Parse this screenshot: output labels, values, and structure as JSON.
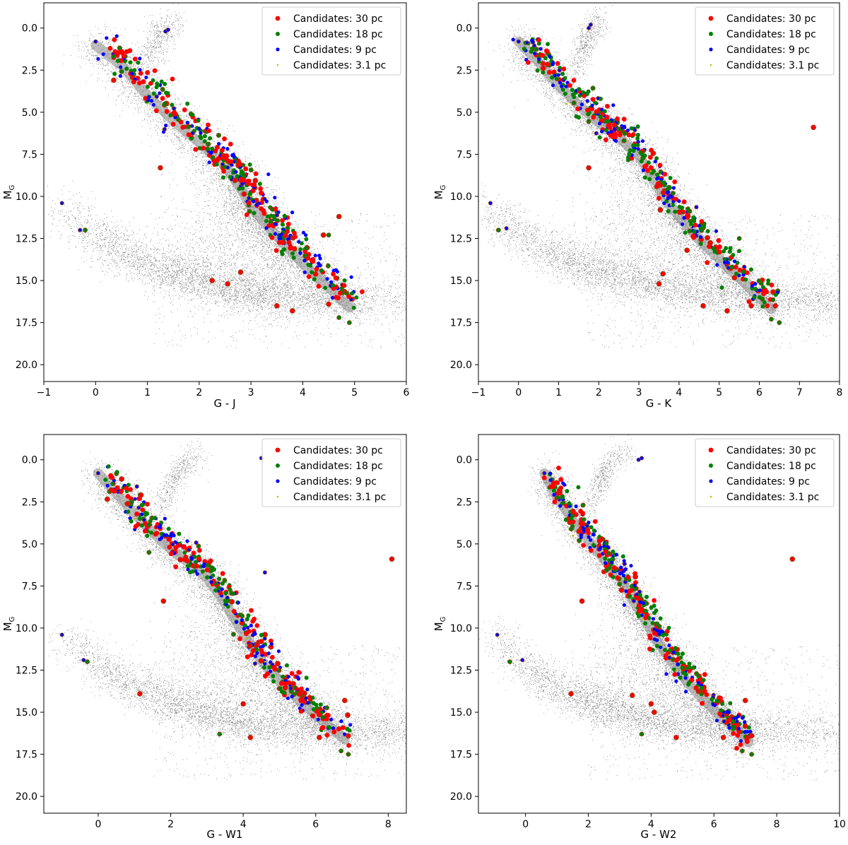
{
  "figure": {
    "background": "#ffffff",
    "background_dot_color": "#808080"
  },
  "legend": [
    {
      "label": "Candidates: 30 pc",
      "color": "#ff0000",
      "marker": "large"
    },
    {
      "label": "Candidates: 18 pc",
      "color": "#008000",
      "marker": "medium"
    },
    {
      "label": "Candidates: 9 pc",
      "color": "#0000ff",
      "marker": "small"
    },
    {
      "label": "Candidates: 3.1 pc",
      "color": "#bfbf00",
      "marker": "tiny"
    }
  ],
  "chart_data": [
    {
      "type": "scatter",
      "title": "",
      "xlabel": "G - J",
      "ylabel": "M_G",
      "xlim": [
        -1,
        6
      ],
      "ylim": [
        21,
        -1.5
      ],
      "xticks": [
        -1,
        0,
        1,
        2,
        3,
        4,
        5,
        6
      ],
      "yticks": [
        0.0,
        2.5,
        5.0,
        7.5,
        10.0,
        12.5,
        15.0,
        17.5,
        20.0
      ],
      "ytick_labels": [
        "0.0",
        "2.5",
        "5.0",
        "7.5",
        "10.0",
        "12.5",
        "15.0",
        "17.5",
        "20.0"
      ],
      "legend_position": "top-right",
      "main_sequence": [
        [
          0.0,
          1.0
        ],
        [
          0.5,
          2.2
        ],
        [
          1.0,
          4.0
        ],
        [
          1.5,
          5.5
        ],
        [
          2.0,
          6.8
        ],
        [
          2.5,
          8.2
        ],
        [
          2.8,
          9.5
        ],
        [
          3.0,
          10.6
        ],
        [
          3.3,
          11.7
        ],
        [
          3.6,
          12.7
        ],
        [
          4.0,
          14.0
        ],
        [
          4.5,
          15.4
        ],
        [
          4.9,
          16.6
        ]
      ],
      "white_dwarf_sequence": [
        [
          -0.6,
          10.5
        ],
        [
          0.0,
          12.3
        ],
        [
          0.5,
          13.3
        ],
        [
          1.0,
          14.0
        ],
        [
          1.5,
          14.6
        ],
        [
          2.0,
          15.0
        ],
        [
          2.5,
          15.5
        ],
        [
          3.0,
          15.8
        ],
        [
          3.5,
          16.0
        ],
        [
          4.5,
          16.1
        ],
        [
          6.0,
          16.2
        ]
      ],
      "giant_branch": [
        [
          0.9,
          2.8
        ],
        [
          1.1,
          1.5
        ],
        [
          1.2,
          0.6
        ],
        [
          1.3,
          0.0
        ],
        [
          1.6,
          -0.5
        ]
      ],
      "series": [
        {
          "name": "Candidates: 30 pc",
          "points": [
            [
              0.35,
              3.1
            ],
            [
              1.25,
              8.3
            ],
            [
              2.25,
              15.0
            ],
            [
              2.55,
              15.2
            ],
            [
              2.8,
              14.5
            ],
            [
              3.5,
              16.5
            ],
            [
              3.8,
              16.8
            ],
            [
              4.5,
              16.4
            ],
            [
              4.7,
              11.2
            ],
            [
              4.4,
              12.3
            ]
          ]
        },
        {
          "name": "Candidates: 18 pc",
          "points": [
            [
              -0.2,
              12.0
            ],
            [
              0.35,
              1.7
            ],
            [
              4.5,
              12.3
            ],
            [
              4.9,
              17.5
            ],
            [
              4.7,
              17.2
            ]
          ]
        },
        {
          "name": "Candidates: 9 pc",
          "points": [
            [
              -0.65,
              10.4
            ],
            [
              -0.3,
              12.0
            ],
            [
              0.0,
              0.8
            ],
            [
              1.35,
              0.2
            ],
            [
              1.4,
              0.1
            ]
          ]
        },
        {
          "name": "Candidates: 3.1 pc",
          "points": [
            [
              1.0,
              4.5
            ],
            [
              2.5,
              8.0
            ],
            [
              3.0,
              10.0
            ],
            [
              3.4,
              11.3
            ]
          ]
        }
      ]
    },
    {
      "type": "scatter",
      "title": "",
      "xlabel": "G - K",
      "ylabel": "M_G",
      "xlim": [
        -1,
        8
      ],
      "ylim": [
        21,
        -1.5
      ],
      "xticks": [
        -1,
        0,
        1,
        2,
        3,
        4,
        5,
        6,
        7,
        8
      ],
      "yticks": [
        0.0,
        2.5,
        5.0,
        7.5,
        10.0,
        12.5,
        15.0,
        17.5,
        20.0
      ],
      "ytick_labels": [
        "0.0",
        "2.5",
        "5.0",
        "7.5",
        "10.0",
        "12.5",
        "15.0",
        "17.5",
        "20.0"
      ],
      "legend_position": "top-right",
      "main_sequence": [
        [
          0.0,
          0.8
        ],
        [
          0.5,
          2.0
        ],
        [
          1.0,
          3.4
        ],
        [
          1.5,
          4.6
        ],
        [
          2.0,
          5.6
        ],
        [
          2.5,
          6.5
        ],
        [
          3.0,
          7.6
        ],
        [
          3.4,
          9.0
        ],
        [
          3.7,
          10.3
        ],
        [
          4.1,
          11.5
        ],
        [
          4.6,
          12.8
        ],
        [
          5.2,
          14.2
        ],
        [
          5.8,
          15.5
        ],
        [
          6.3,
          16.7
        ]
      ],
      "white_dwarf_sequence": [
        [
          -0.8,
          10.5
        ],
        [
          0.0,
          12.2
        ],
        [
          0.7,
          13.2
        ],
        [
          1.3,
          13.9
        ],
        [
          2.0,
          14.5
        ],
        [
          2.7,
          15.0
        ],
        [
          3.5,
          15.4
        ],
        [
          4.5,
          15.8
        ],
        [
          5.5,
          16.0
        ],
        [
          7.0,
          16.1
        ],
        [
          8.0,
          16.1
        ]
      ],
      "giant_branch": [
        [
          1.4,
          2.5
        ],
        [
          1.6,
          1.3
        ],
        [
          1.7,
          0.6
        ],
        [
          1.8,
          0.0
        ],
        [
          2.1,
          -0.5
        ]
      ],
      "series": [
        {
          "name": "Candidates: 30 pc",
          "points": [
            [
              1.75,
              8.3
            ],
            [
              3.5,
              15.2
            ],
            [
              3.6,
              14.6
            ],
            [
              4.6,
              16.5
            ],
            [
              5.2,
              16.8
            ],
            [
              7.35,
              5.9
            ],
            [
              6.4,
              16.5
            ],
            [
              5.8,
              16.5
            ],
            [
              4.2,
              13.2
            ]
          ]
        },
        {
          "name": "Candidates: 18 pc",
          "points": [
            [
              -0.5,
              12.0
            ],
            [
              2.5,
              6.0
            ],
            [
              5.5,
              12.5
            ],
            [
              6.5,
              17.5
            ],
            [
              6.3,
              17.3
            ]
          ]
        },
        {
          "name": "Candidates: 9 pc",
          "points": [
            [
              -0.7,
              10.4
            ],
            [
              -0.3,
              11.9
            ],
            [
              0.0,
              0.8
            ],
            [
              1.75,
              0.0
            ],
            [
              1.8,
              -0.2
            ]
          ]
        },
        {
          "name": "Candidates: 3.1 pc",
          "points": [
            [
              1.2,
              4.5
            ],
            [
              3.3,
              8.5
            ],
            [
              3.8,
              10.5
            ],
            [
              4.3,
              11.8
            ]
          ]
        }
      ]
    },
    {
      "type": "scatter",
      "title": "",
      "xlabel": "G - W1",
      "ylabel": "M_G",
      "xlim": [
        -1.5,
        8.5
      ],
      "ylim": [
        21,
        -1.5
      ],
      "xticks": [
        0,
        2,
        4,
        6,
        8
      ],
      "yticks": [
        0.0,
        2.5,
        5.0,
        7.5,
        10.0,
        12.5,
        15.0,
        17.5,
        20.0
      ],
      "ytick_labels": [
        "0.0",
        "2.5",
        "5.0",
        "7.5",
        "10.0",
        "12.5",
        "15.0",
        "17.5",
        "20.0"
      ],
      "legend_position": "top-right",
      "main_sequence": [
        [
          0.0,
          0.8
        ],
        [
          0.5,
          2.0
        ],
        [
          1.0,
          3.2
        ],
        [
          1.5,
          4.3
        ],
        [
          2.0,
          5.3
        ],
        [
          2.5,
          6.1
        ],
        [
          3.0,
          7.0
        ],
        [
          3.4,
          8.2
        ],
        [
          3.8,
          9.6
        ],
        [
          4.2,
          11.0
        ],
        [
          4.6,
          12.2
        ],
        [
          5.1,
          13.4
        ],
        [
          5.7,
          14.6
        ],
        [
          6.3,
          15.7
        ],
        [
          6.8,
          16.6
        ]
      ],
      "white_dwarf_sequence": [
        [
          -1.0,
          10.4
        ],
        [
          0.0,
          12.3
        ],
        [
          0.8,
          13.3
        ],
        [
          1.5,
          14.0
        ],
        [
          2.2,
          14.6
        ],
        [
          3.0,
          15.1
        ],
        [
          3.8,
          15.6
        ],
        [
          4.8,
          15.9
        ],
        [
          6.0,
          16.0
        ],
        [
          7.5,
          16.1
        ],
        [
          8.5,
          16.1
        ]
      ],
      "giant_branch": [
        [
          1.7,
          2.8
        ],
        [
          2.0,
          1.6
        ],
        [
          2.2,
          0.8
        ],
        [
          2.4,
          0.2
        ],
        [
          2.9,
          -0.4
        ]
      ],
      "series": [
        {
          "name": "Candidates: 30 pc",
          "points": [
            [
              1.8,
              8.4
            ],
            [
              1.15,
              13.9
            ],
            [
              4.0,
              14.5
            ],
            [
              4.2,
              16.5
            ],
            [
              6.8,
              14.3
            ],
            [
              8.1,
              5.9
            ],
            [
              6.9,
              16.4
            ],
            [
              6.1,
              16.5
            ],
            [
              4.5,
              10.8
            ]
          ]
        },
        {
          "name": "Candidates: 18 pc",
          "points": [
            [
              -0.3,
              12.0
            ],
            [
              1.4,
              5.5
            ],
            [
              3.35,
              16.3
            ],
            [
              6.9,
              17.5
            ],
            [
              6.7,
              17.3
            ]
          ]
        },
        {
          "name": "Candidates: 9 pc",
          "points": [
            [
              -1.0,
              10.4
            ],
            [
              -0.4,
              11.9
            ],
            [
              0.0,
              0.8
            ],
            [
              4.6,
              6.7
            ],
            [
              4.5,
              -0.1
            ]
          ]
        },
        {
          "name": "Candidates: 3.1 pc",
          "points": [
            [
              1.0,
              3.5
            ],
            [
              3.6,
              9.0
            ],
            [
              4.1,
              10.6
            ],
            [
              4.6,
              12.0
            ]
          ]
        }
      ]
    },
    {
      "type": "scatter",
      "title": "",
      "xlabel": "G - W2",
      "ylabel": "M_G",
      "xlim": [
        -1.5,
        10
      ],
      "ylim": [
        21,
        -1.5
      ],
      "xticks": [
        0,
        2,
        4,
        6,
        8,
        10
      ],
      "yticks": [
        0.0,
        2.5,
        5.0,
        7.5,
        10.0,
        12.5,
        15.0,
        17.5,
        20.0
      ],
      "ytick_labels": [
        "0.0",
        "2.5",
        "5.0",
        "7.5",
        "10.0",
        "12.5",
        "15.0",
        "17.5",
        "20.0"
      ],
      "legend_position": "top-right",
      "main_sequence": [
        [
          0.6,
          0.8
        ],
        [
          1.0,
          2.2
        ],
        [
          1.5,
          3.6
        ],
        [
          2.0,
          4.8
        ],
        [
          2.5,
          5.9
        ],
        [
          3.0,
          7.0
        ],
        [
          3.4,
          8.2
        ],
        [
          3.8,
          9.5
        ],
        [
          4.2,
          10.8
        ],
        [
          4.7,
          12.1
        ],
        [
          5.2,
          13.3
        ],
        [
          5.8,
          14.5
        ],
        [
          6.5,
          15.7
        ],
        [
          7.1,
          16.8
        ]
      ],
      "white_dwarf_sequence": [
        [
          -1.0,
          10.4
        ],
        [
          0.0,
          12.3
        ],
        [
          0.8,
          13.3
        ],
        [
          1.6,
          14.0
        ],
        [
          2.4,
          14.6
        ],
        [
          3.2,
          15.2
        ],
        [
          4.2,
          15.6
        ],
        [
          5.3,
          15.9
        ],
        [
          6.5,
          16.0
        ],
        [
          8.0,
          16.1
        ],
        [
          10.0,
          16.1
        ]
      ],
      "giant_branch": [
        [
          2.0,
          2.8
        ],
        [
          2.3,
          1.5
        ],
        [
          2.5,
          0.8
        ],
        [
          2.7,
          0.2
        ],
        [
          3.3,
          -0.4
        ]
      ],
      "series": [
        {
          "name": "Candidates: 30 pc",
          "points": [
            [
              1.8,
              8.4
            ],
            [
              1.45,
              13.9
            ],
            [
              3.4,
              14.0
            ],
            [
              4.0,
              14.5
            ],
            [
              4.1,
              15.0
            ],
            [
              4.8,
              16.5
            ],
            [
              7.0,
              14.3
            ],
            [
              8.5,
              5.9
            ],
            [
              7.2,
              16.4
            ],
            [
              6.3,
              16.5
            ]
          ]
        },
        {
          "name": "Candidates: 18 pc",
          "points": [
            [
              -0.5,
              12.0
            ],
            [
              3.7,
              16.3
            ],
            [
              7.2,
              17.5
            ],
            [
              6.9,
              17.3
            ]
          ]
        },
        {
          "name": "Candidates: 9 pc",
          "points": [
            [
              -0.9,
              10.4
            ],
            [
              -0.1,
              11.9
            ],
            [
              0.6,
              0.8
            ],
            [
              3.6,
              0.0
            ],
            [
              3.7,
              -0.1
            ]
          ]
        },
        {
          "name": "Candidates: 3.1 pc",
          "points": [
            [
              1.5,
              4.5
            ],
            [
              3.7,
              9.5
            ],
            [
              4.3,
              11.0
            ],
            [
              4.8,
              12.5
            ]
          ]
        }
      ]
    }
  ]
}
